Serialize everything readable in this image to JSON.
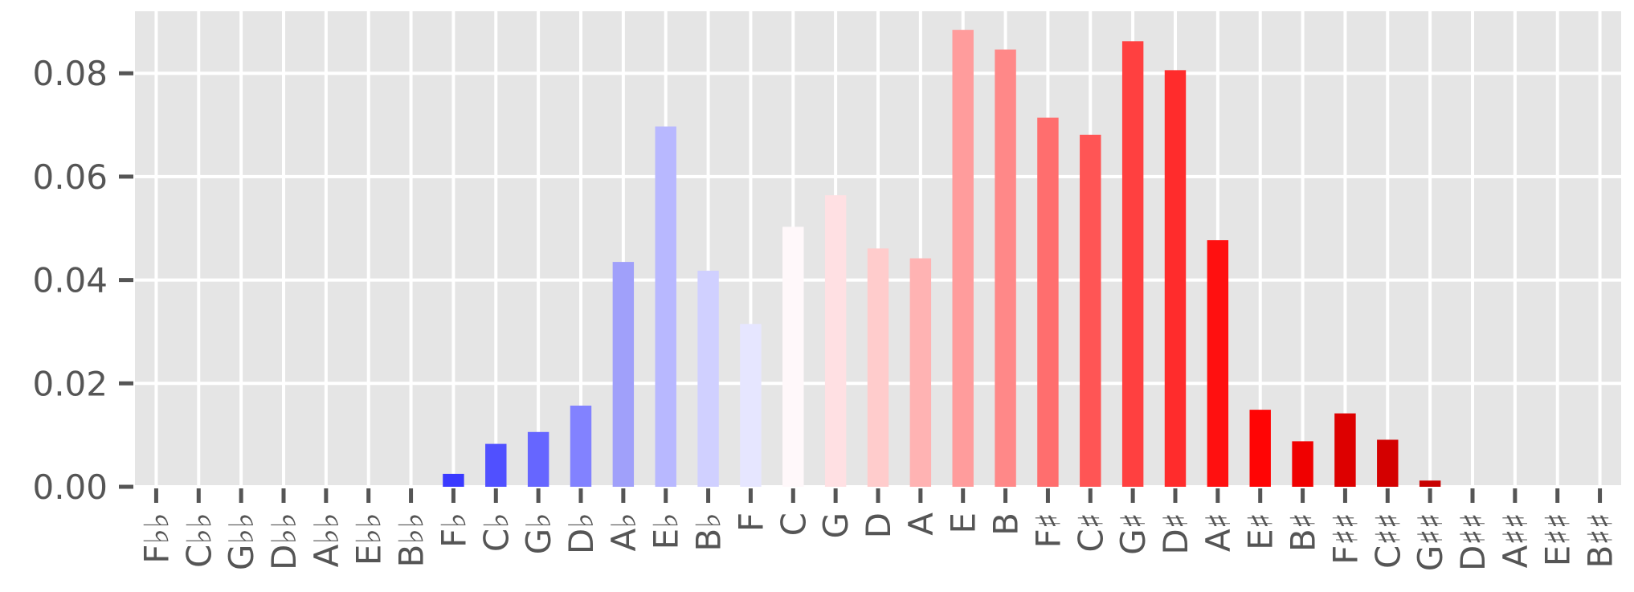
{
  "chart_data": {
    "type": "bar",
    "title": "",
    "xlabel": "",
    "ylabel": "",
    "categories": [
      "F♭♭",
      "C♭♭",
      "G♭♭",
      "D♭♭",
      "A♭♭",
      "E♭♭",
      "B♭♭",
      "F♭",
      "C♭",
      "G♭",
      "D♭",
      "A♭",
      "E♭",
      "B♭",
      "F",
      "C",
      "G",
      "D",
      "A",
      "E",
      "B",
      "F♯",
      "C♯",
      "G♯",
      "D♯",
      "A♯",
      "E♯",
      "B♯",
      "F♯♯",
      "C♯♯",
      "G♯♯",
      "D♯♯",
      "A♯♯",
      "E♯♯",
      "B♯♯"
    ],
    "values": [
      0,
      0,
      0,
      0,
      0,
      0,
      0,
      0.0025,
      0.0083,
      0.0106,
      0.0157,
      0.0435,
      0.0697,
      0.0418,
      0.0315,
      0.0503,
      0.0564,
      0.0461,
      0.0442,
      0.0884,
      0.0846,
      0.0714,
      0.0681,
      0.0862,
      0.0806,
      0.0477,
      0.0149,
      0.0088,
      0.0142,
      0.0091,
      0.0012,
      0,
      0,
      0,
      0
    ],
    "colors": [
      "#0000ff",
      "#0f0fff",
      "#1f1fff",
      "#2e2eff",
      "#3d3dff",
      "#4c4cff",
      "#5b5bff",
      "#3a3aff",
      "#5050ff",
      "#6666ff",
      "#8282ff",
      "#a0a0fa",
      "#b8b8ff",
      "#d0d0ff",
      "#e6e6ff",
      "#fff8fa",
      "#ffe0e3",
      "#ffcccc",
      "#ffb3b3",
      "#ff9c9c",
      "#ff8888",
      "#ff6e6e",
      "#ff5555",
      "#ff4040",
      "#ff2c2c",
      "#ff1010",
      "#ff0505",
      "#f00000",
      "#dd0000",
      "#d40000",
      "#c80000",
      "#bb0000",
      "#aa0000",
      "#990000",
      "#880000"
    ],
    "ylim": [
      0,
      0.092
    ],
    "yticks": [
      0.0,
      0.02,
      0.04,
      0.06,
      0.08
    ],
    "ytick_labels": [
      "0.00",
      "0.02",
      "0.04",
      "0.06",
      "0.08"
    ],
    "grid": true,
    "legend": "none",
    "style": {
      "background": "#e5e5e5",
      "grid_color": "#ffffff",
      "tick_color": "#555555"
    }
  }
}
